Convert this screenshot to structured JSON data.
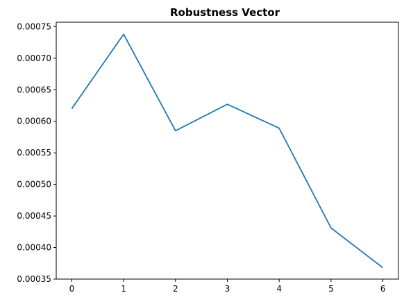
{
  "chart_data": {
    "type": "line",
    "title": "Robustness Vector",
    "xlabel": "",
    "ylabel": "",
    "x": [
      0,
      1,
      2,
      3,
      4,
      5,
      6
    ],
    "series": [
      {
        "values": [
          0.00062,
          0.000738,
          0.000585,
          0.000627,
          0.000589,
          0.000431,
          0.000368
        ],
        "color": "#1f77b4"
      }
    ],
    "xlim": [
      -0.3,
      6.3
    ],
    "ylim": [
      0.00035,
      0.000757
    ],
    "xticks": [
      0,
      1,
      2,
      3,
      4,
      5,
      6
    ],
    "xtick_labels": [
      "0",
      "1",
      "2",
      "3",
      "4",
      "5",
      "6"
    ],
    "yticks": [
      0.00035,
      0.0004,
      0.00045,
      0.0005,
      0.00055,
      0.0006,
      0.00065,
      0.0007,
      0.00075
    ],
    "ytick_labels": [
      "0.00035",
      "0.00040",
      "0.00045",
      "0.00050",
      "0.00055",
      "0.00060",
      "0.00065",
      "0.00070",
      "0.00075"
    ],
    "grid": false,
    "legend": "none"
  }
}
